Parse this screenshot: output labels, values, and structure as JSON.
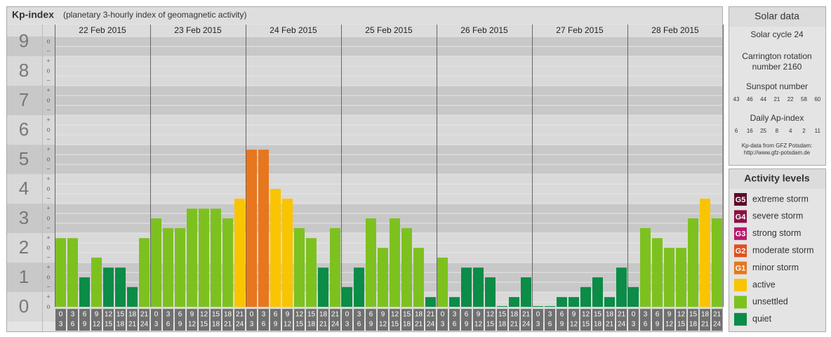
{
  "chart_data": {
    "type": "bar",
    "title": "Kp-index",
    "subtitle": "(planetary 3-hourly index of geomagnetic activity)",
    "ylim": [
      -0.5,
      9.17
    ],
    "yticks": [
      0,
      1,
      2,
      3,
      4,
      5,
      6,
      7,
      8,
      9
    ],
    "sublevels": [
      "o",
      "+",
      "−"
    ],
    "hours": [
      0,
      3,
      6,
      9,
      12,
      15,
      18,
      21,
      24
    ],
    "days": [
      {
        "date": "22 Feb 2015",
        "values": [
          2.33,
          2.33,
          1,
          1.67,
          1.33,
          1.33,
          0.67,
          2.33
        ],
        "colors": [
          "#7dc11f",
          "#7dc11f",
          "#0b8c47",
          "#7dc11f",
          "#0b8c47",
          "#0b8c47",
          "#0b8c47",
          "#7dc11f"
        ]
      },
      {
        "date": "23 Feb 2015",
        "values": [
          3,
          2.67,
          2.67,
          3.33,
          3.33,
          3.33,
          3,
          3.67
        ],
        "colors": [
          "#7dc11f",
          "#7dc11f",
          "#7dc11f",
          "#7dc11f",
          "#7dc11f",
          "#7dc11f",
          "#7dc11f",
          "#f9c400"
        ]
      },
      {
        "date": "24 Feb 2015",
        "values": [
          5.33,
          5.33,
          4,
          3.67,
          2.67,
          2.33,
          1.33,
          2.67
        ],
        "colors": [
          "#e8761d",
          "#e8761d",
          "#f9c400",
          "#f9c400",
          "#7dc11f",
          "#7dc11f",
          "#0b8c47",
          "#7dc11f"
        ]
      },
      {
        "date": "25 Feb 2015",
        "values": [
          0.67,
          1.33,
          3,
          2,
          3,
          2.67,
          2,
          0.33
        ],
        "colors": [
          "#0b8c47",
          "#0b8c47",
          "#7dc11f",
          "#7dc11f",
          "#7dc11f",
          "#7dc11f",
          "#7dc11f",
          "#0b8c47"
        ]
      },
      {
        "date": "26 Feb 2015",
        "values": [
          1.67,
          0.33,
          1.33,
          1.33,
          1,
          0,
          0.33,
          1
        ],
        "colors": [
          "#7dc11f",
          "#0b8c47",
          "#0b8c47",
          "#0b8c47",
          "#0b8c47",
          "#0b8c47",
          "#0b8c47",
          "#0b8c47"
        ]
      },
      {
        "date": "27 Feb 2015",
        "values": [
          0,
          0,
          0.33,
          0.33,
          0.67,
          1,
          0.33,
          1.33
        ],
        "colors": [
          "#0b8c47",
          "#0b8c47",
          "#0b8c47",
          "#0b8c47",
          "#0b8c47",
          "#0b8c47",
          "#0b8c47",
          "#0b8c47"
        ]
      },
      {
        "date": "28 Feb 2015",
        "values": [
          0.67,
          2.67,
          2.33,
          2,
          2,
          3,
          3.67,
          3
        ],
        "colors": [
          "#0b8c47",
          "#7dc11f",
          "#7dc11f",
          "#7dc11f",
          "#7dc11f",
          "#7dc11f",
          "#f9c400",
          "#7dc11f"
        ]
      }
    ]
  },
  "solar_data": {
    "title": "Solar data",
    "cycle": "Solar cycle 24",
    "carrington": [
      "Carrington rotation",
      "number 2160"
    ],
    "sunspot_title": "Sunspot number",
    "sunspots": [
      43,
      46,
      44,
      21,
      22,
      58,
      60
    ],
    "ap_title": "Daily Ap-index",
    "ap": [
      6,
      16,
      25,
      8,
      4,
      2,
      11
    ],
    "source": [
      "Kp-data from GFZ Potsdam:",
      "http://www.gfz-potsdam.de"
    ]
  },
  "activity_levels": {
    "title": "Activity levels",
    "items": [
      {
        "code": "G5",
        "label": "extreme storm",
        "color": "#5c0a2c"
      },
      {
        "code": "G4",
        "label": "severe storm",
        "color": "#8c0f45"
      },
      {
        "code": "G3",
        "label": "strong storm",
        "color": "#b8196a"
      },
      {
        "code": "G2",
        "label": "moderate storm",
        "color": "#e0501e"
      },
      {
        "code": "G1",
        "label": "minor storm",
        "color": "#e8761d"
      },
      {
        "label": "active",
        "color": "#f9c400"
      },
      {
        "label": "unsettled",
        "color": "#7dc11f"
      },
      {
        "label": "quiet",
        "color": "#0b8c47"
      }
    ]
  }
}
